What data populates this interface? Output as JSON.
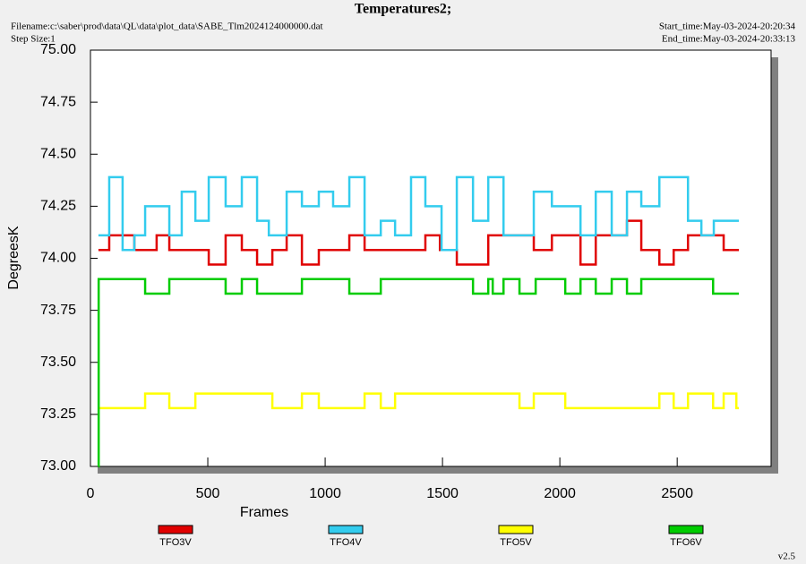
{
  "chart_data": {
    "type": "line",
    "step": true,
    "title": "Temperatures2;",
    "filename": "Filename:c:\\saber\\prod\\data\\QL\\data\\plot_data\\SABE_Tlm2024124000000.dat",
    "step_size": "Step Size:1",
    "start_time": "Start_time:May-03-2024-20:20:34",
    "end_time": "End_time:May-03-2024-20:33:13",
    "version": "v2.5",
    "x_label": "Frames",
    "y_label": "DegreesK",
    "xlim": [
      0,
      2900
    ],
    "xticks": [
      0,
      500,
      1000,
      1500,
      2000,
      2500
    ],
    "ylim": [
      73,
      75
    ],
    "yticks": [
      {
        "value": 73,
        "label": "73.00"
      },
      {
        "value": 73.25,
        "label": "73.25"
      },
      {
        "value": 73.5,
        "label": "73.50"
      },
      {
        "value": 73.75,
        "label": "73.75"
      },
      {
        "value": 74,
        "label": "74.00"
      },
      {
        "value": 74.25,
        "label": "74.25"
      },
      {
        "value": 74.5,
        "label": "74.50"
      },
      {
        "value": 74.75,
        "label": "74.75"
      },
      {
        "value": 75,
        "label": "75.00"
      }
    ],
    "legend": "bottom",
    "series": [
      {
        "name": "TFO3V",
        "color": "#e00000",
        "x": [
          34,
          80,
          187,
          282,
          336,
          504,
          576,
          645,
          710,
          775,
          836,
          901,
          973,
          1103,
          1168,
          1427,
          1489,
          1561,
          1695,
          1889,
          1966,
          2088,
          2153,
          2286,
          2347,
          2424,
          2485,
          2546,
          2698,
          2763
        ],
        "values": [
          74.04,
          74.11,
          74.04,
          74.11,
          74.04,
          73.97,
          74.11,
          74.04,
          73.97,
          74.04,
          74.11,
          73.97,
          74.04,
          74.11,
          74.04,
          74.11,
          74.04,
          73.97,
          74.11,
          74.04,
          74.11,
          73.97,
          74.11,
          74.18,
          74.04,
          73.97,
          74.04,
          74.11,
          74.04,
          74.04
        ]
      },
      {
        "name": "TFO4V",
        "color": "#33ccee",
        "x": [
          34,
          80,
          137,
          187,
          233,
          336,
          389,
          447,
          504,
          576,
          645,
          710,
          760,
          836,
          901,
          973,
          1034,
          1103,
          1168,
          1237,
          1298,
          1366,
          1427,
          1496,
          1561,
          1630,
          1695,
          1760,
          1889,
          1966,
          2088,
          2153,
          2221,
          2286,
          2347,
          2424,
          2546,
          2603,
          2656,
          2763
        ],
        "values": [
          74.11,
          74.39,
          74.04,
          74.11,
          74.25,
          74.11,
          74.32,
          74.18,
          74.39,
          74.25,
          74.39,
          74.18,
          74.11,
          74.32,
          74.25,
          74.32,
          74.25,
          74.39,
          74.11,
          74.18,
          74.11,
          74.39,
          74.25,
          74.04,
          74.39,
          74.18,
          74.39,
          74.11,
          74.32,
          74.25,
          74.11,
          74.32,
          74.11,
          74.32,
          74.25,
          74.39,
          74.18,
          74.11,
          74.18,
          74.18
        ]
      },
      {
        "name": "TFO5V",
        "color": "#ffff00",
        "x": [
          34,
          233,
          336,
          447,
          775,
          901,
          973,
          1168,
          1237,
          1298,
          1828,
          1889,
          2023,
          2424,
          2485,
          2546,
          2653,
          2698,
          2752,
          2763
        ],
        "values": [
          73.28,
          73.35,
          73.28,
          73.35,
          73.28,
          73.35,
          73.28,
          73.35,
          73.28,
          73.35,
          73.28,
          73.35,
          73.28,
          73.35,
          73.28,
          73.35,
          73.28,
          73.35,
          73.28,
          73.28
        ]
      },
      {
        "name": "TFO6V",
        "color": "#00cc00",
        "x": [
          34,
          35,
          233,
          336,
          576,
          645,
          710,
          901,
          1103,
          1237,
          1630,
          1695,
          1714,
          1760,
          1828,
          1897,
          2023,
          2088,
          2153,
          2221,
          2286,
          2347,
          2653,
          2760,
          2763
        ],
        "values": [
          73.0,
          73.9,
          73.83,
          73.9,
          73.83,
          73.9,
          73.83,
          73.9,
          73.83,
          73.9,
          73.83,
          73.9,
          73.83,
          73.9,
          73.83,
          73.9,
          73.83,
          73.9,
          73.83,
          73.9,
          73.83,
          73.9,
          73.83,
          73.83,
          73.83
        ]
      }
    ]
  }
}
